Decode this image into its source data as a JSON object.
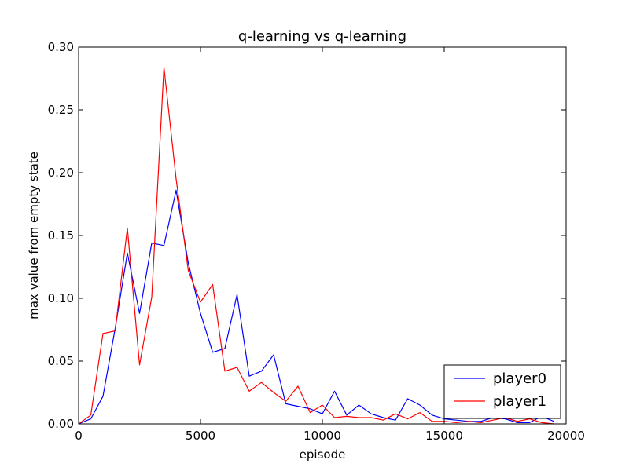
{
  "chart_data": {
    "type": "line",
    "title": "q-learning vs q-learning",
    "xlabel": "episode",
    "ylabel": "max value from empty state",
    "xlim": [
      0,
      20000
    ],
    "ylim": [
      0,
      0.3
    ],
    "xticks": [
      0,
      5000,
      10000,
      15000,
      20000
    ],
    "xtick_labels": [
      "0",
      "5000",
      "10000",
      "15000",
      "20000"
    ],
    "yticks": [
      0,
      0.05,
      0.1,
      0.15,
      0.2,
      0.25,
      0.3
    ],
    "ytick_labels": [
      "0.00",
      "0.05",
      "0.10",
      "0.15",
      "0.20",
      "0.25",
      "0.30"
    ],
    "grid": false,
    "legend_position": "lower-right",
    "x": [
      0,
      500,
      1000,
      1500,
      2000,
      2500,
      3000,
      3500,
      4000,
      4500,
      5000,
      5500,
      6000,
      6500,
      7000,
      7500,
      8000,
      8500,
      9000,
      9500,
      10000,
      10500,
      11000,
      11500,
      12000,
      12500,
      13000,
      13500,
      14000,
      14500,
      15000,
      15500,
      16000,
      16500,
      17000,
      17500,
      18000,
      18500,
      19000,
      19500
    ],
    "series": [
      {
        "name": "player0",
        "color": "#0000ff",
        "values": [
          0.0,
          0.004,
          0.022,
          0.076,
          0.136,
          0.088,
          0.144,
          0.142,
          0.186,
          0.128,
          0.088,
          0.057,
          0.06,
          0.103,
          0.038,
          0.042,
          0.055,
          0.016,
          0.014,
          0.012,
          0.008,
          0.026,
          0.007,
          0.015,
          0.008,
          0.005,
          0.003,
          0.02,
          0.015,
          0.007,
          0.004,
          0.003,
          0.002,
          0.002,
          0.005,
          0.004,
          0.001,
          0.001,
          0.006,
          0.002
        ]
      },
      {
        "name": "player1",
        "color": "#ff0000",
        "values": [
          0.0,
          0.007,
          0.072,
          0.074,
          0.156,
          0.047,
          0.101,
          0.284,
          0.195,
          0.122,
          0.097,
          0.111,
          0.042,
          0.045,
          0.026,
          0.033,
          0.025,
          0.018,
          0.03,
          0.009,
          0.015,
          0.005,
          0.006,
          0.005,
          0.005,
          0.003,
          0.008,
          0.004,
          0.009,
          0.002,
          0.002,
          0.001,
          0.002,
          0.001,
          0.003,
          0.005,
          0.002,
          0.004,
          0.001,
          0.0
        ]
      }
    ]
  }
}
